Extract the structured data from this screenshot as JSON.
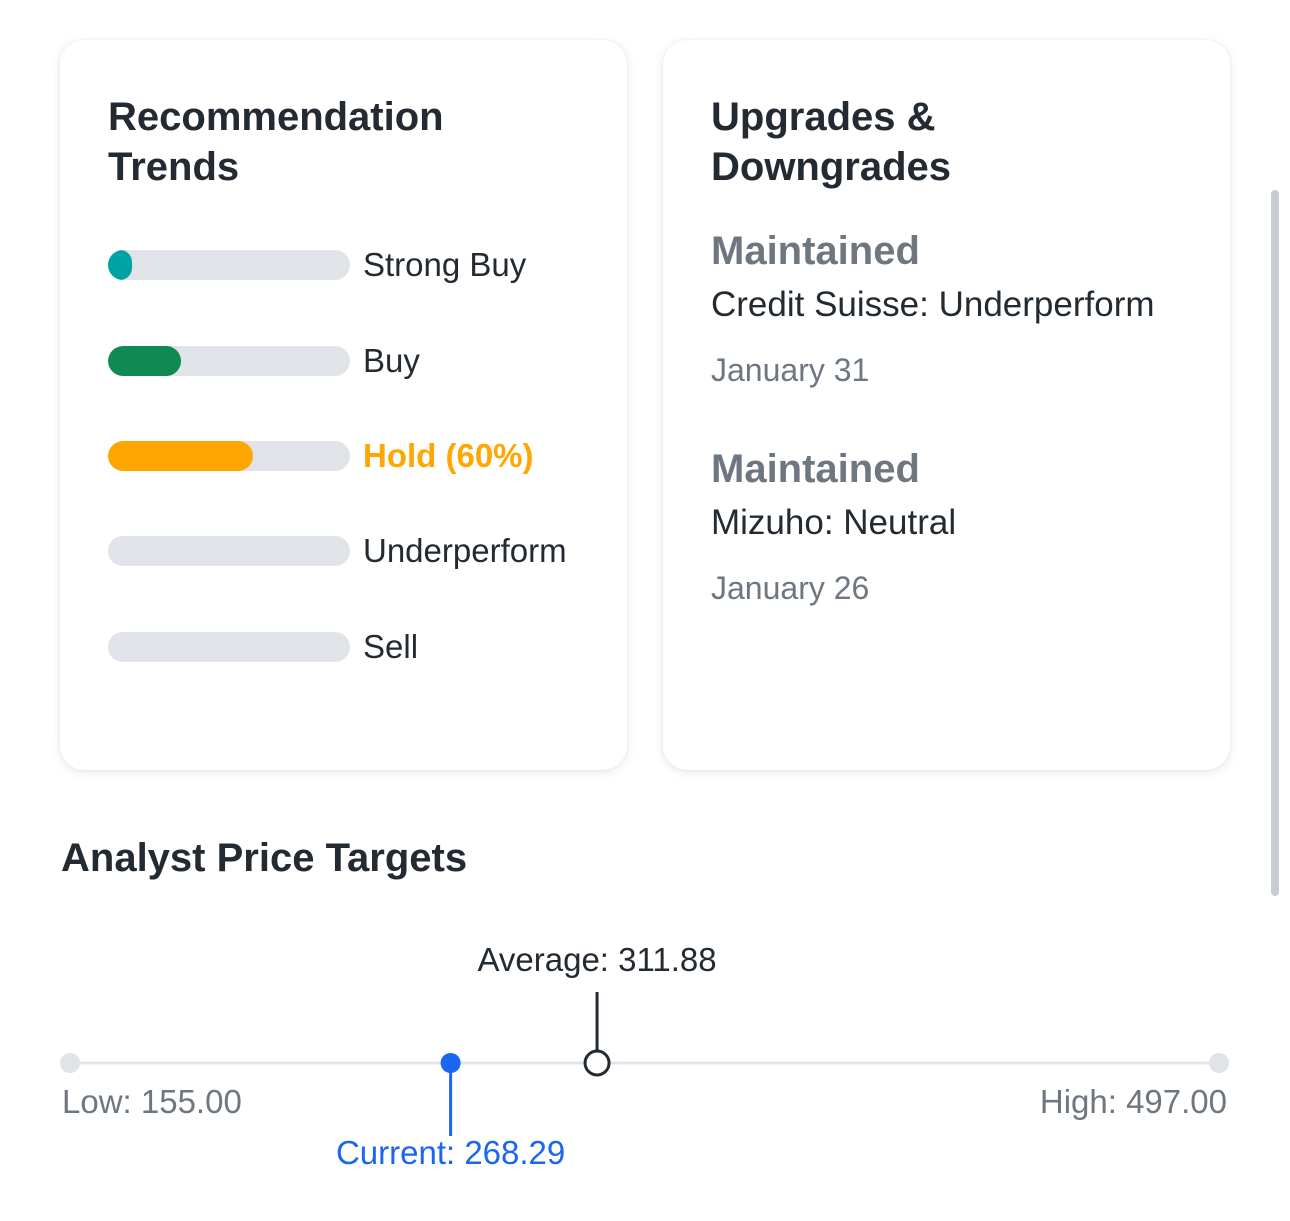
{
  "recommendation_trends": {
    "title": "Recommendation Trends",
    "items": [
      {
        "label": "Strong Buy",
        "fraction": 0.1,
        "color": "#00a3a5",
        "active": false
      },
      {
        "label": "Buy",
        "fraction": 0.3,
        "color": "#0e8a52",
        "active": false
      },
      {
        "label": "Hold (60%)",
        "fraction": 0.6,
        "color": "#ffa700",
        "active": true
      },
      {
        "label": "Underperform",
        "fraction": 0.0,
        "color": "#e0e4e9",
        "active": false
      },
      {
        "label": "Sell",
        "fraction": 0.0,
        "color": "#e0e4e9",
        "active": false
      }
    ]
  },
  "upgrades_downgrades": {
    "title": "Upgrades & Downgrades",
    "items": [
      {
        "action": "Maintained",
        "firm": "Credit Suisse: Underperform",
        "date": "January 31"
      },
      {
        "action": "Maintained",
        "firm": "Mizuho: Neutral",
        "date": "January 26"
      }
    ]
  },
  "analyst_price_targets": {
    "title": "Analyst Price Targets",
    "low_label": "Low: 155.00",
    "high_label": "High: 497.00",
    "current_label": "Current: 268.29",
    "average_label": "Average: 311.88",
    "low": 155.0,
    "high": 497.0,
    "current": 268.29,
    "average": 311.88,
    "colors": {
      "current": "#1a66f0",
      "track": "#e0e4e9",
      "average": "#232a31",
      "muted": "#6e7780"
    }
  }
}
